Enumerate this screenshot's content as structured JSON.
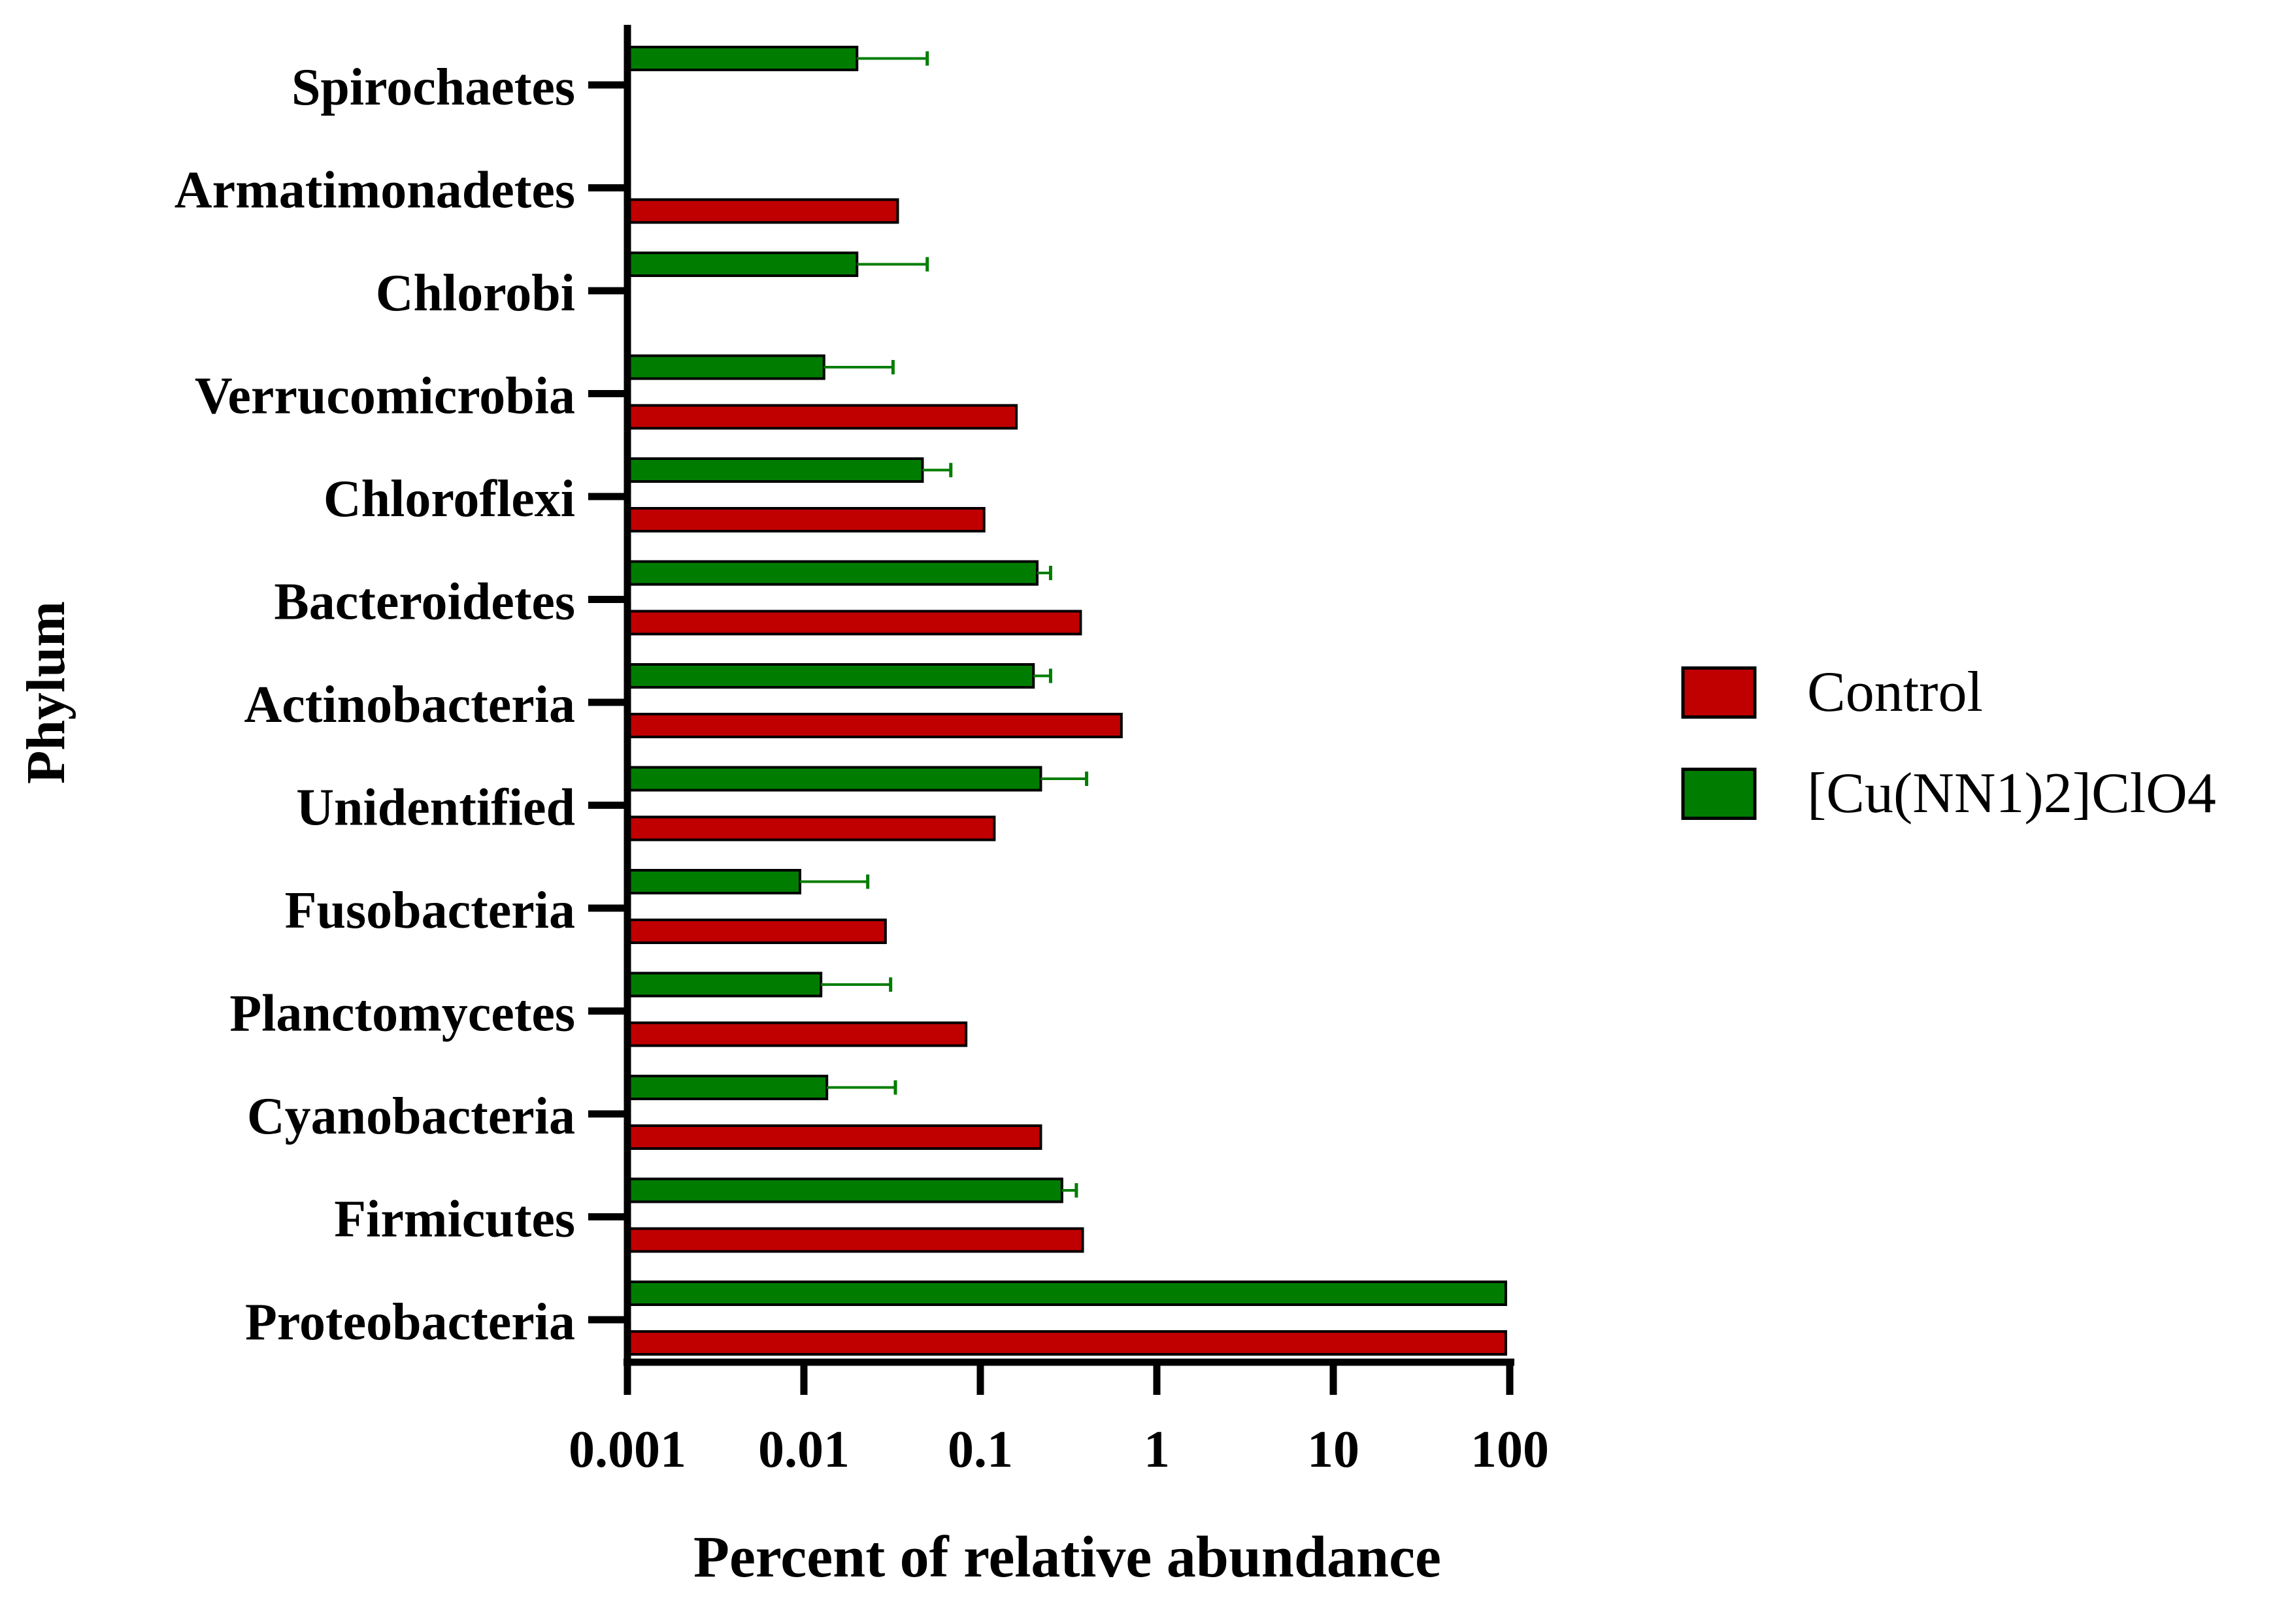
{
  "chart_data": {
    "type": "bar",
    "orientation": "horizontal",
    "x_scale": "log",
    "xlim": [
      0.001,
      100
    ],
    "xlabel": "Percent of relative abundance",
    "ylabel": "Phylum",
    "x_ticks": [
      "0.001",
      "0.01",
      "0.1",
      "1",
      "10",
      "100"
    ],
    "x_tick_values": [
      0.001,
      0.01,
      0.1,
      1,
      10,
      100
    ],
    "categories": [
      "Spirochaetes",
      "Armatimonadetes",
      "Chlorobi",
      "Verrucomicrobia",
      "Chloroflexi",
      "Bacteroidetes",
      "Actinobacteria",
      "Unidentified",
      "Fusobacteria",
      "Planctomycetes",
      "Cyanobacteria",
      "Firmicutes",
      "Proteobacteria"
    ],
    "series": [
      {
        "name": "Control",
        "color": "#c00000",
        "values": [
          null,
          0.034,
          null,
          0.16,
          0.105,
          0.37,
          0.63,
          0.12,
          0.029,
          0.083,
          0.22,
          0.38,
          95
        ]
      },
      {
        "name": "[Cu(NN1)2]ClO4",
        "color": "#007d00",
        "values": [
          0.02,
          null,
          0.02,
          0.013,
          0.047,
          0.21,
          0.2,
          0.22,
          0.0095,
          0.0125,
          0.0135,
          0.29,
          95
        ],
        "error_upper": [
          0.05,
          null,
          0.05,
          0.032,
          0.068,
          0.25,
          0.25,
          0.4,
          0.023,
          0.031,
          0.033,
          0.35,
          null
        ]
      }
    ],
    "legend_position": "right",
    "grid": false
  }
}
